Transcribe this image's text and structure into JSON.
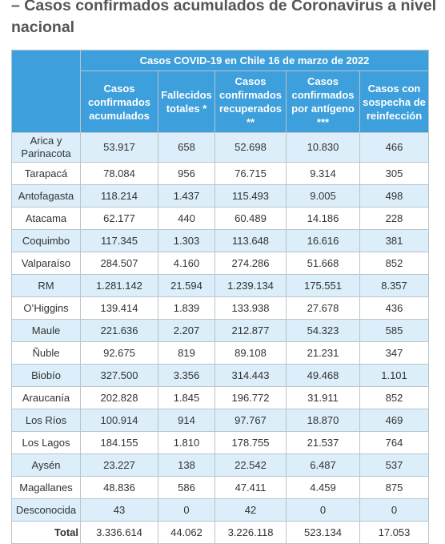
{
  "title": "– Casos confirmados acumulados de Coronavirus a nivel nacional",
  "table": {
    "caption": "Casos COVID-19 en Chile 16 de marzo de 2022",
    "columns": [
      "Casos confirmados acumulados",
      "Fallecidos totales *",
      "Casos confirmados recuperados **",
      "Casos confirmados por antígeno ***",
      "Casos con sospecha de reinfección"
    ],
    "rows": [
      [
        "Arica y Parinacota",
        "53.917",
        "658",
        "52.698",
        "10.830",
        "466"
      ],
      [
        "Tarapacá",
        "78.084",
        "956",
        "76.715",
        "9.314",
        "305"
      ],
      [
        "Antofagasta",
        "118.214",
        "1.437",
        "115.493",
        "9.005",
        "498"
      ],
      [
        "Atacama",
        "62.177",
        "440",
        "60.489",
        "14.186",
        "228"
      ],
      [
        "Coquimbo",
        "117.345",
        "1.303",
        "113.648",
        "16.616",
        "381"
      ],
      [
        "Valparaíso",
        "284.507",
        "4.160",
        "274.286",
        "51.668",
        "852"
      ],
      [
        "RM",
        "1.281.142",
        "21.594",
        "1.239.134",
        "175.551",
        "8.357"
      ],
      [
        "O’Higgins",
        "139.414",
        "1.839",
        "133.938",
        "27.678",
        "436"
      ],
      [
        "Maule",
        "221.636",
        "2.207",
        "212.877",
        "54.323",
        "585"
      ],
      [
        "Ñuble",
        "92.675",
        "819",
        "89.108",
        "21.231",
        "347"
      ],
      [
        "Biobío",
        "327.500",
        "3.356",
        "314.443",
        "49.468",
        "1.101"
      ],
      [
        "Araucanía",
        "202.828",
        "1.845",
        "196.772",
        "31.911",
        "852"
      ],
      [
        "Los Ríos",
        "100.914",
        "914",
        "97.767",
        "18.870",
        "469"
      ],
      [
        "Los Lagos",
        "184.155",
        "1.810",
        "178.755",
        "21.537",
        "764"
      ],
      [
        "Aysén",
        "23.227",
        "138",
        "22.542",
        "6.487",
        "537"
      ],
      [
        "Magallanes",
        "48.836",
        "586",
        "47.411",
        "4.459",
        "875"
      ],
      [
        "Desconocida",
        "43",
        "0",
        "42",
        "0",
        "0"
      ]
    ],
    "total": [
      "Total",
      "3.336.614",
      "44.062",
      "3.226.118",
      "523.134",
      "17.053"
    ]
  }
}
